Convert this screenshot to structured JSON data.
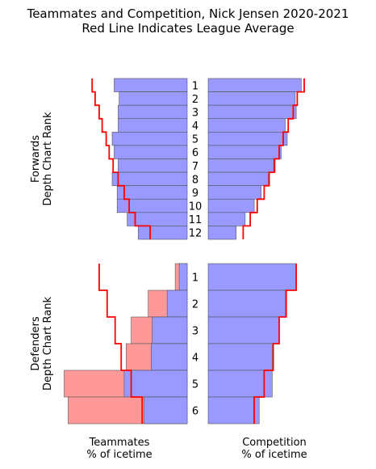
{
  "chart_data": {
    "type": "bar",
    "title": "Teammates and Competition, Nick Jensen 2020-2021",
    "subtitle": "Red Line Indicates League Average",
    "xlabel_left": [
      "Teammates",
      "% of icetime"
    ],
    "xlabel_right": [
      "Competition",
      "% of icetime"
    ],
    "colors": {
      "bar": "#9999ff",
      "bar_overflow": "#ff9999",
      "bar_edge": "#555555",
      "average_line": "#ff0000"
    },
    "forwards": {
      "ylabel": [
        "Forwards",
        "Depth Chart Rank"
      ],
      "categories": [
        "1",
        "2",
        "3",
        "4",
        "5",
        "6",
        "7",
        "8",
        "9",
        "10",
        "11",
        "12"
      ],
      "xlim": [
        0,
        100
      ],
      "teammates": [
        73,
        68,
        69,
        69,
        75,
        73,
        69,
        75,
        70,
        70,
        60,
        49
      ],
      "teammates_average": [
        95,
        92,
        88,
        85,
        81,
        78,
        74,
        69,
        63,
        58,
        52,
        37
      ],
      "competition": [
        93,
        87,
        88,
        77,
        79,
        73,
        67,
        60,
        53,
        46,
        37,
        28
      ],
      "competition_average": [
        96,
        89,
        85,
        80,
        75,
        71,
        66,
        61,
        56,
        49,
        42,
        35
      ]
    },
    "defenders": {
      "ylabel": [
        "Defenders",
        "Depth Chart Rank"
      ],
      "categories": [
        "1",
        "2",
        "3",
        "4",
        "5",
        "6"
      ],
      "xlim": [
        0,
        100
      ],
      "teammates": [
        8,
        20,
        35,
        36,
        63,
        43
      ],
      "teammates_overflow": [
        12,
        39,
        56,
        61,
        123,
        119
      ],
      "teammates_average": [
        88,
        80,
        72,
        66,
        56,
        45
      ],
      "competition": [
        88,
        77,
        71,
        64,
        64,
        51
      ],
      "competition_average": [
        88,
        78,
        71,
        65,
        56,
        46
      ]
    }
  }
}
